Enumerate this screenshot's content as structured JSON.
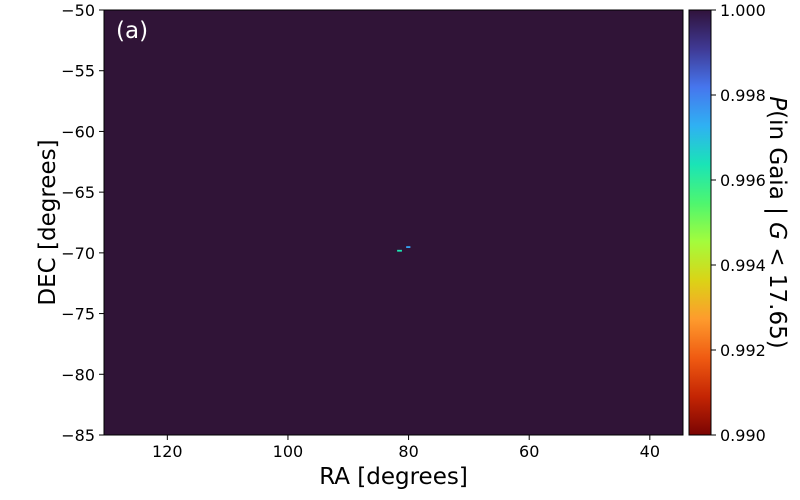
{
  "chart_data": {
    "type": "heatmap",
    "panel_label": "(a)",
    "xlabel": "RA [degrees]",
    "ylabel": "DEC [degrees]",
    "colorbar_label": "P(in Gaia | G < 17.65)",
    "xlim": [
      130.5,
      34.5
    ],
    "ylim": [
      -85,
      -50
    ],
    "x_ticks": [
      120,
      100,
      80,
      60,
      40
    ],
    "y_ticks": [
      -50,
      -55,
      -60,
      -65,
      -70,
      -75,
      -80,
      -85
    ],
    "colorbar": {
      "range": [
        0.99,
        1.0
      ],
      "ticks": [
        1.0,
        0.998,
        0.996,
        0.994,
        0.992,
        0.99
      ],
      "tick_labels": [
        "1.000",
        "0.998",
        "0.996",
        "0.994",
        "0.992",
        "0.990"
      ],
      "colormap": "turbo"
    },
    "background_value": 1.0,
    "cells": [
      {
        "ra_min": 81.9,
        "ra_max": 81.1,
        "dec_min": -69.9,
        "dec_max": -69.75,
        "value": 0.9963
      },
      {
        "ra_min": 80.4,
        "ra_max": 79.7,
        "dec_min": -69.6,
        "dec_max": -69.45,
        "value": 0.9975
      }
    ],
    "colors": {
      "background": "#301437",
      "turbo_stops": [
        "#7a0403",
        "#c42503",
        "#f05b12",
        "#fe9b2d",
        "#dbd316",
        "#a4fc3c",
        "#4ef66f",
        "#1ae4b6",
        "#2fb1f3",
        "#4676ee",
        "#3f3994",
        "#30123b"
      ]
    }
  }
}
